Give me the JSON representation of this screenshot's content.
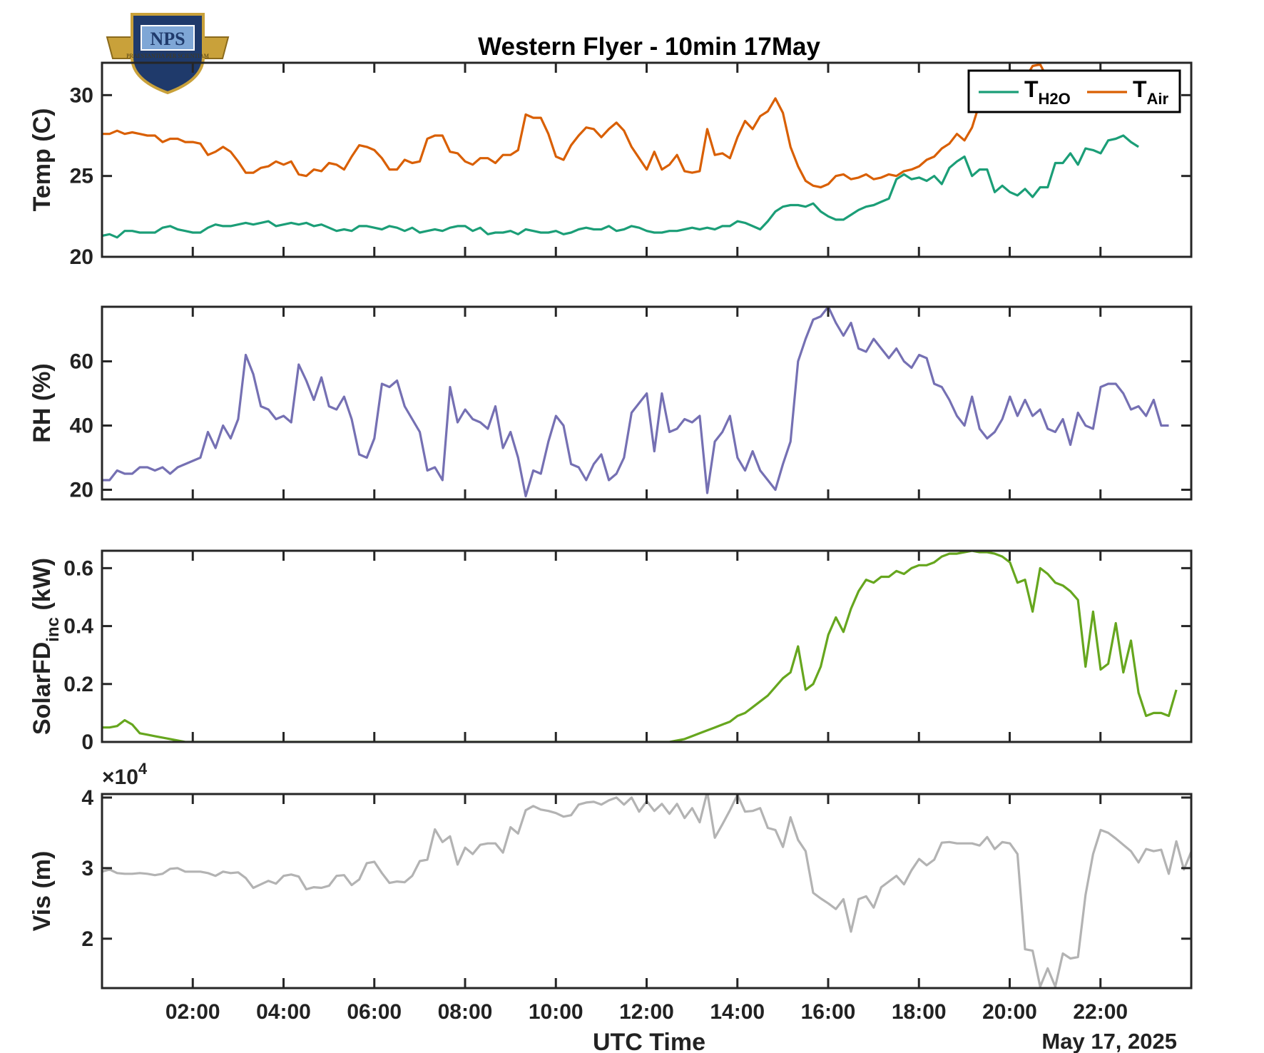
{
  "title": "Western Flyer - 10min 17May",
  "logo": {
    "text": "NPS",
    "motto": "PRAESTANTIA PER SCIENTIAM",
    "colors": {
      "navy": "#1f3a6b",
      "gold": "#c9a13a",
      "sky": "#7fa7d6"
    }
  },
  "x_axis": {
    "label": "UTC Time",
    "date_label": "May 17, 2025",
    "range": [
      "00:00",
      "24:00"
    ],
    "tick_hours": [
      2,
      4,
      6,
      8,
      10,
      12,
      14,
      16,
      18,
      20,
      22
    ],
    "tick_labels": [
      "02:00",
      "04:00",
      "06:00",
      "08:00",
      "10:00",
      "12:00",
      "14:00",
      "16:00",
      "18:00",
      "20:00",
      "22:00"
    ]
  },
  "chart_data": [
    {
      "type": "line",
      "ylabel": "Temp (C)",
      "ylim": [
        20,
        32
      ],
      "yticks": [
        20,
        25,
        30
      ],
      "ytick_labels": [
        "20",
        "25",
        "30"
      ],
      "legend": {
        "placement": "top-right",
        "items": [
          {
            "base": "T",
            "sub": "H2O",
            "color": "#1b9e77"
          },
          {
            "base": "T",
            "sub": "Air",
            "color": "#d95f02"
          }
        ]
      },
      "x_hours_start": 0,
      "x_hours_step": 0.1667,
      "series": [
        {
          "name": "TH2O",
          "color": "#1b9e77",
          "values": [
            21.3,
            21.4,
            21.2,
            21.6,
            21.6,
            21.5,
            21.5,
            21.5,
            21.8,
            21.9,
            21.7,
            21.6,
            21.5,
            21.5,
            21.8,
            22.0,
            21.9,
            21.9,
            22.0,
            22.1,
            22.0,
            22.1,
            22.2,
            21.9,
            22.0,
            22.1,
            22.0,
            22.1,
            21.9,
            22.0,
            21.8,
            21.6,
            21.7,
            21.6,
            21.9,
            21.9,
            21.8,
            21.7,
            21.9,
            21.8,
            21.6,
            21.8,
            21.5,
            21.6,
            21.7,
            21.6,
            21.8,
            21.9,
            21.9,
            21.6,
            21.8,
            21.4,
            21.5,
            21.5,
            21.6,
            21.4,
            21.7,
            21.6,
            21.5,
            21.5,
            21.6,
            21.4,
            21.5,
            21.7,
            21.8,
            21.7,
            21.7,
            21.9,
            21.6,
            21.7,
            21.9,
            21.8,
            21.6,
            21.5,
            21.5,
            21.6,
            21.6,
            21.7,
            21.8,
            21.7,
            21.8,
            21.7,
            21.9,
            21.9,
            22.2,
            22.1,
            21.9,
            21.7,
            22.2,
            22.8,
            23.1,
            23.2,
            23.2,
            23.1,
            23.3,
            22.8,
            22.5,
            22.3,
            22.3,
            22.6,
            22.9,
            23.1,
            23.2,
            23.4,
            23.6,
            24.8,
            25.1,
            24.8,
            24.9,
            24.7,
            25.0,
            24.5,
            25.5,
            25.9,
            26.2,
            25.0,
            25.4,
            25.4,
            24.0,
            24.4,
            24.0,
            23.8,
            24.2,
            23.7,
            24.3,
            24.3,
            25.8,
            25.8,
            26.4,
            25.7,
            26.7,
            26.6,
            26.4,
            27.2,
            27.3,
            27.5,
            27.1,
            26.8
          ]
        },
        {
          "name": "TAir",
          "color": "#d95f02",
          "values": [
            27.6,
            27.6,
            27.8,
            27.6,
            27.7,
            27.6,
            27.5,
            27.5,
            27.1,
            27.3,
            27.3,
            27.1,
            27.1,
            27.0,
            26.3,
            26.5,
            26.8,
            26.5,
            25.9,
            25.2,
            25.2,
            25.5,
            25.6,
            25.9,
            25.7,
            25.9,
            25.1,
            25.0,
            25.4,
            25.3,
            25.8,
            25.7,
            25.4,
            26.2,
            26.9,
            26.8,
            26.6,
            26.1,
            25.4,
            25.4,
            26.0,
            25.8,
            25.9,
            27.3,
            27.5,
            27.5,
            26.5,
            26.4,
            25.9,
            25.7,
            26.1,
            26.1,
            25.8,
            26.3,
            26.3,
            26.6,
            28.8,
            28.6,
            28.6,
            27.6,
            26.2,
            26.0,
            26.9,
            27.5,
            28.0,
            27.9,
            27.4,
            27.9,
            28.3,
            27.8,
            26.8,
            26.1,
            25.4,
            26.5,
            25.4,
            25.7,
            26.3,
            25.3,
            25.2,
            25.3,
            27.9,
            26.3,
            26.4,
            26.1,
            27.4,
            28.4,
            27.9,
            28.7,
            29.0,
            29.8,
            28.9,
            26.8,
            25.6,
            24.7,
            24.4,
            24.3,
            24.5,
            25.0,
            25.1,
            24.8,
            24.9,
            25.1,
            24.8,
            24.9,
            25.1,
            25.0,
            25.3,
            25.4,
            25.6,
            26.0,
            26.2,
            26.7,
            27.0,
            27.6,
            27.2,
            28.0,
            29.5,
            30.3,
            30.5,
            31.0,
            30.5,
            30.8,
            31.0,
            31.8,
            31.9,
            31.0,
            30.6,
            30.0,
            30.2,
            29.9,
            30.3,
            30.2,
            30.1,
            29.9,
            30.5,
            30.4
          ]
        }
      ]
    },
    {
      "type": "line",
      "ylabel": "RH (%)",
      "ylim": [
        17,
        77
      ],
      "yticks": [
        20,
        40,
        60
      ],
      "ytick_labels": [
        "20",
        "40",
        "60"
      ],
      "x_hours_start": 0,
      "x_hours_step": 0.1667,
      "series": [
        {
          "name": "",
          "color": "#7570b3",
          "values": [
            23,
            23,
            26,
            25,
            25,
            27,
            27,
            26,
            27,
            25,
            27,
            28,
            29,
            30,
            38,
            33,
            40,
            36,
            42,
            62,
            56,
            46,
            45,
            42,
            43,
            41,
            59,
            54,
            48,
            55,
            46,
            45,
            49,
            42,
            31,
            30,
            36,
            53,
            52,
            54,
            46,
            42,
            38,
            26,
            27,
            23,
            52,
            41,
            45,
            42,
            41,
            39,
            46,
            33,
            38,
            30,
            18,
            26,
            25,
            35,
            43,
            40,
            28,
            27,
            23,
            28,
            31,
            23,
            25,
            30,
            44,
            47,
            50,
            32,
            50,
            38,
            39,
            42,
            41,
            43,
            19,
            35,
            38,
            43,
            30,
            26,
            32,
            26,
            23,
            20,
            28,
            35,
            60,
            67,
            73,
            74,
            77,
            72,
            68,
            72,
            64,
            63,
            67,
            64,
            61,
            64,
            60,
            58,
            62,
            61,
            53,
            52,
            48,
            43,
            40,
            49,
            39,
            36,
            38,
            42,
            49,
            43,
            48,
            43,
            45,
            39,
            38,
            42,
            34,
            44,
            40,
            39,
            52,
            53,
            53,
            50,
            45,
            46,
            43,
            48,
            40,
            40
          ]
        }
      ]
    },
    {
      "type": "line",
      "ylabel": "SolarFD",
      "ylabel_sub": "inc",
      "ylabel_unit": "(kW)",
      "ylim": [
        0,
        0.66
      ],
      "yticks": [
        0,
        0.2,
        0.4,
        0.6
      ],
      "ytick_labels": [
        "0",
        "0.2",
        "0.4",
        "0.6"
      ],
      "x_hours_start": 0,
      "x_hours_step": 0.1667,
      "series": [
        {
          "name": "",
          "color": "#66a61e",
          "values": [
            0.05,
            0.05,
            0.055,
            0.075,
            0.06,
            0.03,
            0.025,
            0.02,
            0.015,
            0.01,
            0.005,
            0,
            0,
            0,
            0,
            0,
            0,
            0,
            0,
            0,
            0,
            0,
            0,
            0,
            0,
            0,
            0,
            0,
            0,
            0,
            0,
            0,
            0,
            0,
            0,
            0,
            0,
            0,
            0,
            0,
            0,
            0,
            0,
            0,
            0,
            0,
            0,
            0,
            0,
            0,
            0,
            0,
            0,
            0,
            0,
            0,
            0,
            0,
            0,
            0,
            0,
            0,
            0,
            0,
            0,
            0,
            0,
            0,
            0,
            0,
            0,
            0,
            0,
            0,
            0,
            0,
            0.005,
            0.01,
            0.02,
            0.03,
            0.04,
            0.05,
            0.06,
            0.07,
            0.09,
            0.1,
            0.12,
            0.14,
            0.16,
            0.19,
            0.22,
            0.24,
            0.33,
            0.18,
            0.2,
            0.26,
            0.37,
            0.43,
            0.38,
            0.46,
            0.52,
            0.56,
            0.55,
            0.57,
            0.57,
            0.59,
            0.58,
            0.6,
            0.61,
            0.61,
            0.62,
            0.64,
            0.65,
            0.65,
            0.655,
            0.66,
            0.655,
            0.655,
            0.65,
            0.64,
            0.62,
            0.55,
            0.56,
            0.45,
            0.6,
            0.58,
            0.55,
            0.54,
            0.52,
            0.49,
            0.26,
            0.45,
            0.25,
            0.27,
            0.41,
            0.24,
            0.35,
            0.17,
            0.09,
            0.1,
            0.1,
            0.09,
            0.18
          ]
        }
      ]
    },
    {
      "type": "line",
      "ylabel": "Vis (m)",
      "ylim": [
        13000,
        40500
      ],
      "yticks": [
        20000,
        30000,
        40000
      ],
      "ytick_labels": [
        "2",
        "3",
        "4"
      ],
      "exponent_label": "×10",
      "exponent_power": "4",
      "x_hours_start": 0,
      "x_hours_step": 0.1667,
      "series": [
        {
          "name": "",
          "color": "#b3b3b3",
          "values": [
            29500,
            29800,
            29300,
            29200,
            29200,
            29300,
            29200,
            29000,
            29200,
            29900,
            30000,
            29500,
            29500,
            29500,
            29300,
            28900,
            29500,
            29300,
            29400,
            28600,
            27200,
            27700,
            28200,
            27800,
            28900,
            29100,
            28800,
            27000,
            27300,
            27200,
            27500,
            28900,
            29000,
            27600,
            28400,
            30700,
            30900,
            29300,
            27900,
            28100,
            28000,
            28900,
            31000,
            31200,
            35500,
            33700,
            34500,
            30500,
            32900,
            32000,
            33300,
            33500,
            33500,
            32200,
            35800,
            34900,
            38200,
            38800,
            38300,
            38100,
            37800,
            37300,
            37500,
            39000,
            39300,
            39400,
            39000,
            39600,
            40000,
            39000,
            40000,
            38000,
            39500,
            38100,
            39100,
            37700,
            39100,
            37100,
            38500,
            36500,
            40800,
            34300,
            36200,
            38200,
            40400,
            38000,
            38100,
            38500,
            35700,
            35400,
            33000,
            37200,
            34000,
            32400,
            26500,
            25700,
            25000,
            24200,
            25600,
            21000,
            25600,
            26000,
            24400,
            27300,
            28100,
            28900,
            27700,
            29700,
            31300,
            30400,
            31200,
            33600,
            33700,
            33500,
            33500,
            33500,
            33200,
            34400,
            32700,
            33700,
            33500,
            32000,
            18500,
            18300,
            13200,
            15800,
            13200,
            17900,
            17200,
            17400,
            26200,
            32000,
            35400,
            35000,
            34200,
            33300,
            32400,
            30800,
            32700,
            32400,
            32600,
            29200,
            33800,
            29800,
            32400,
            19800
          ]
        }
      ]
    }
  ]
}
